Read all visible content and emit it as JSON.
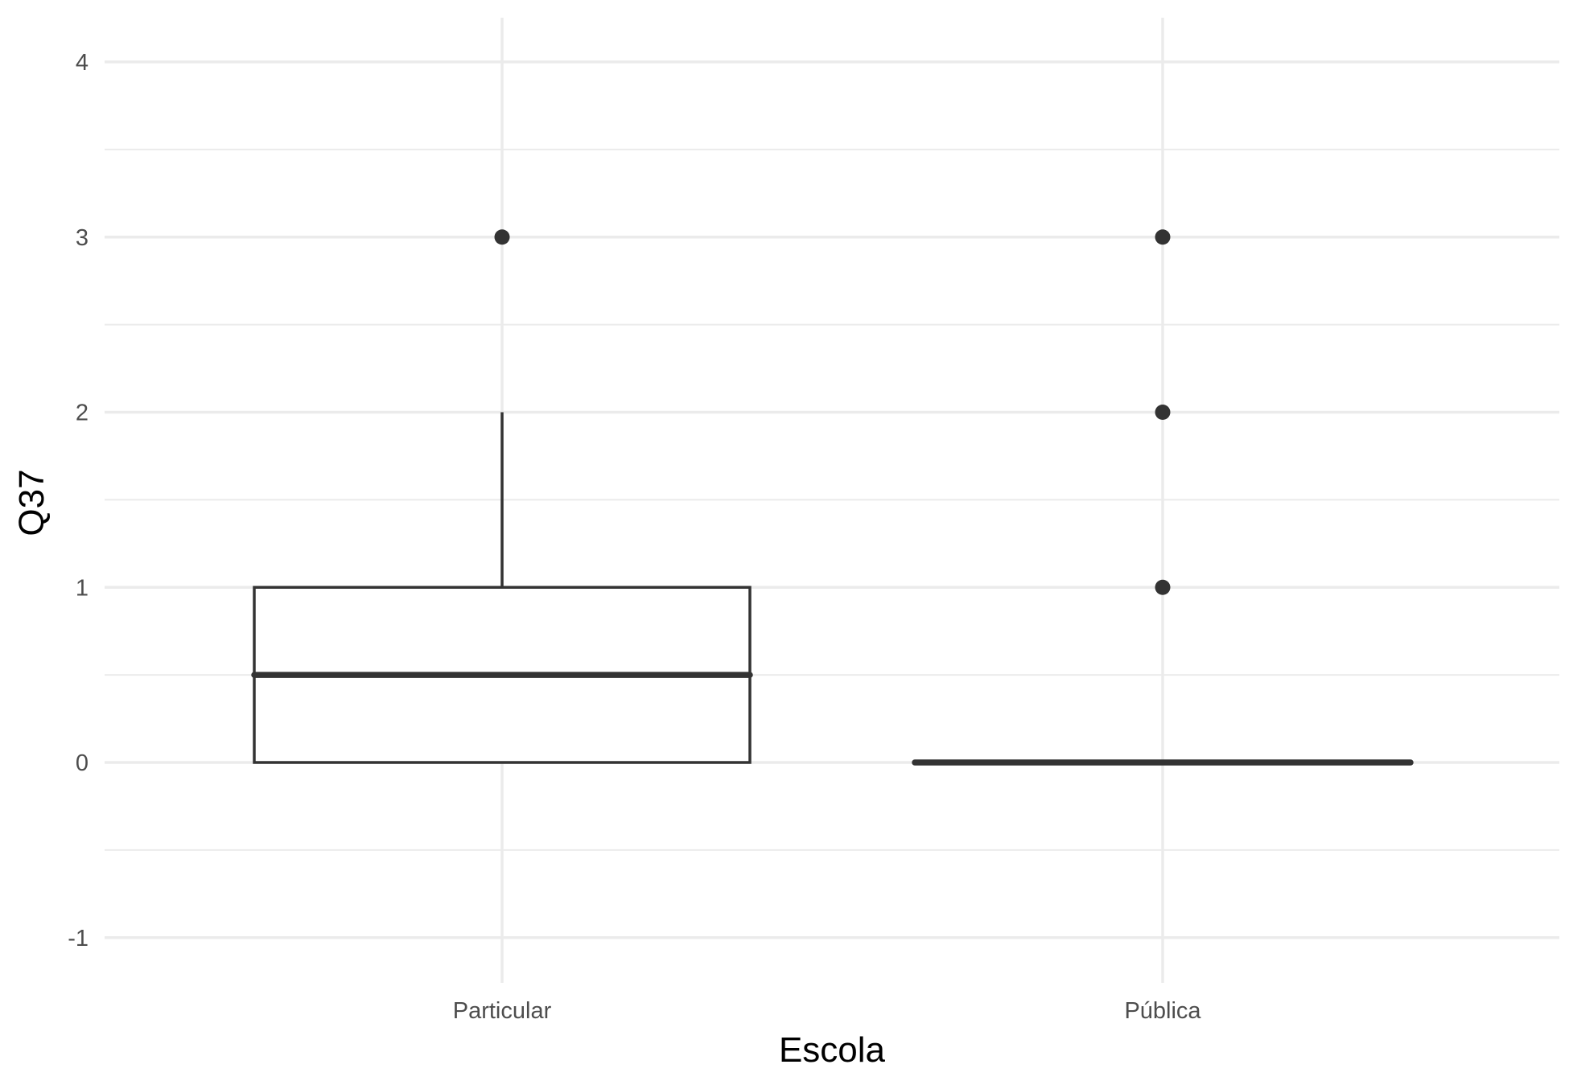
{
  "chart_data": {
    "type": "box",
    "xlabel": "Escola",
    "ylabel": "Q37",
    "ylim": [
      -1.25,
      4.25
    ],
    "y_ticks": [
      -1,
      0,
      1,
      2,
      3,
      4
    ],
    "categories": [
      "Particular",
      "Pública"
    ],
    "boxes": [
      {
        "category": "Particular",
        "q1": 0,
        "median": 0.5,
        "q3": 1,
        "whisker_low": 0,
        "whisker_high": 2,
        "outliers": [
          3
        ]
      },
      {
        "category": "Pública",
        "q1": 0,
        "median": 0,
        "q3": 0,
        "whisker_low": 0,
        "whisker_high": 0,
        "outliers": [
          1,
          2,
          3
        ]
      }
    ],
    "grid": true,
    "colors": {
      "box_line": "#333333",
      "box_fill": "#ffffff",
      "grid": "#ebebeb",
      "tick_text": "#4d4d4d"
    }
  }
}
